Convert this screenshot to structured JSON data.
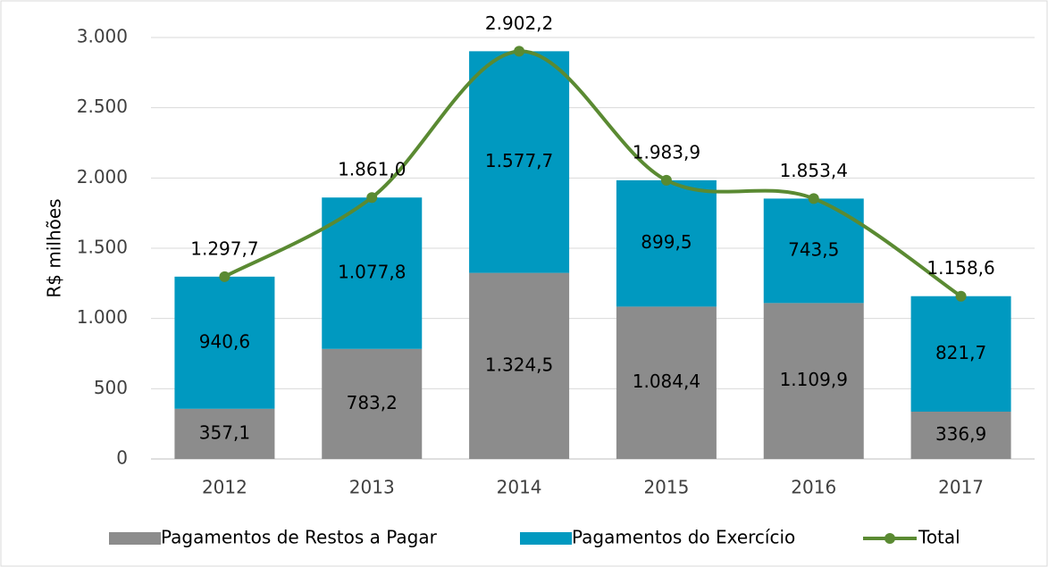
{
  "chart_data": {
    "type": "bar",
    "stacked": true,
    "y_label": "R$ milhões",
    "categories": [
      "2012",
      "2013",
      "2014",
      "2015",
      "2016",
      "2017"
    ],
    "series": [
      {
        "name": "Pagamentos de  Restos a Pagar",
        "color": "#8c8c8c",
        "type": "bar",
        "values": [
          357.1,
          783.2,
          1324.5,
          1084.4,
          1109.9,
          336.9
        ],
        "value_labels": [
          "357,1",
          "783,2",
          "1.324,5",
          "1.084,4",
          "1.109,9",
          "336,9"
        ]
      },
      {
        "name": "Pagamentos do Exercício",
        "color": "#0099c0",
        "type": "bar",
        "values": [
          940.6,
          1077.8,
          1577.7,
          899.5,
          743.5,
          821.7
        ],
        "value_labels": [
          "940,6",
          "1.077,8",
          "1.577,7",
          "899,5",
          "743,5",
          "821,7"
        ]
      },
      {
        "name": "Total",
        "color": "#5a8a32",
        "type": "line",
        "values": [
          1297.7,
          1861.0,
          2902.2,
          1983.9,
          1853.4,
          1158.6
        ],
        "value_labels": [
          "1.297,7",
          "1.861,0",
          "2.902,2",
          "1.983,9",
          "1.853,4",
          "1.158,6"
        ]
      }
    ],
    "ylim": [
      0,
      3000
    ],
    "yticks": [
      0,
      500,
      {
        "value": 1000,
        "label": "1.000"
      },
      {
        "value": 1500,
        "label": "1.500"
      },
      {
        "value": 2000,
        "label": "2.000"
      },
      {
        "value": 2500,
        "label": "2.500"
      },
      {
        "value": 3000,
        "label": "3.000"
      }
    ],
    "grid": true,
    "legend": "bottom"
  }
}
